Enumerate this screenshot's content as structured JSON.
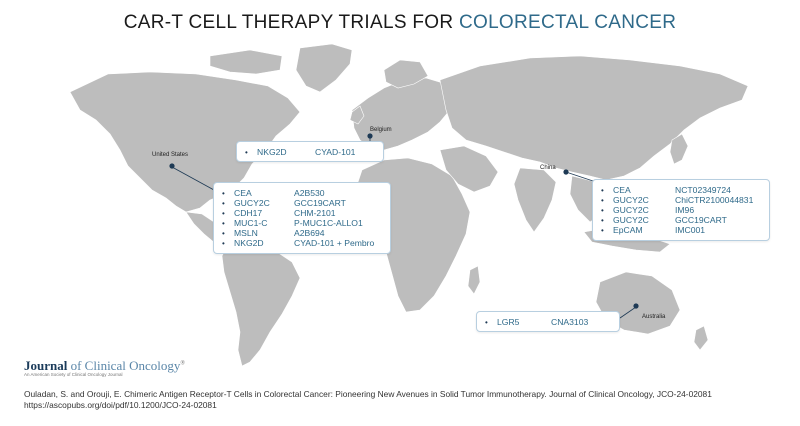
{
  "title": {
    "prefix": "CAR-T CELL THERAPY TRIALS FOR ",
    "accent": "COLORECTAL CANCER"
  },
  "colors": {
    "accent": "#2f6a8a",
    "land": "#bdbdbd",
    "panel_border": "#b8cfe0",
    "dot": "#1e3a55"
  },
  "locations": {
    "belgium": "Belgium",
    "united_states": "United States",
    "china": "China",
    "australia": "Australia"
  },
  "panels": {
    "belgium": [
      {
        "target": "NKG2D",
        "product": "CYAD-101"
      }
    ],
    "united_states": [
      {
        "target": "CEA",
        "product": "A2B530"
      },
      {
        "target": "GUCY2C",
        "product": "GCC19CART"
      },
      {
        "target": "CDH17",
        "product": "CHM-2101"
      },
      {
        "target": "MUC1-C",
        "product": "P-MUC1C-ALLO1"
      },
      {
        "target": "MSLN",
        "product": "A2B694"
      },
      {
        "target": "NKG2D",
        "product": "CYAD-101 + Pembro"
      }
    ],
    "china": [
      {
        "target": "CEA",
        "product": "NCT02349724"
      },
      {
        "target": "GUCY2C",
        "product": "ChiCTR2100044831"
      },
      {
        "target": "GUCY2C",
        "product": "IM96"
      },
      {
        "target": "GUCY2C",
        "product": "GCC19CART"
      },
      {
        "target": "EpCAM",
        "product": "IMC001"
      }
    ],
    "australia": [
      {
        "target": "LGR5",
        "product": "CNA3103"
      }
    ]
  },
  "journal": {
    "name_bold": "Journal",
    "name_rest": " of Clinical Oncology",
    "mark": "®",
    "subtitle": "An American Society of Clinical Oncology Journal"
  },
  "citation": {
    "line1": "Ouladan, S. and Orouji, E. Chimeric Antigen Receptor-T Cells in Colorectal Cancer: Pioneering New Avenues in Solid Tumor Immunotherapy. Journal of Clinical Oncology, JCO-24-02081",
    "line2": "https://ascopubs.org/doi/pdf/10.1200/JCO-24-02081"
  }
}
